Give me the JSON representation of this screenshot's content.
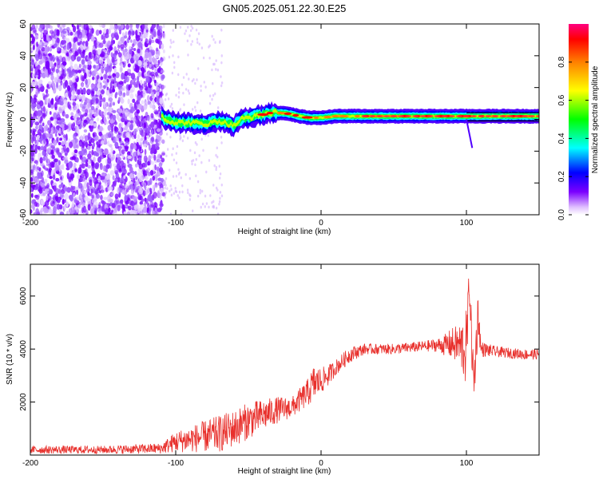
{
  "title": "GN05.2025.051.22.30.E25",
  "colorbar": {
    "label": "Normalized spectral amplitude",
    "ticks": [
      "0.0",
      "0.2",
      "0.4",
      "0.6",
      "0.8"
    ],
    "tick_values": [
      0.0,
      0.2,
      0.4,
      0.6,
      0.8
    ],
    "range": [
      0,
      1
    ],
    "colors": [
      "#ffffff",
      "#7b00ff",
      "#0000ff",
      "#00ffff",
      "#00ff00",
      "#ffff00",
      "#ff8000",
      "#ff0000",
      "#ff00aa"
    ]
  },
  "chart_data": [
    {
      "type": "heatmap",
      "title": "",
      "xlabel": "Height of straight line (km)",
      "ylabel": "Frequency (Hz)",
      "xlim": [
        -200,
        150
      ],
      "ylim": [
        -60,
        60
      ],
      "x_ticks": [
        -200,
        -100,
        0,
        100
      ],
      "y_ticks": [
        -60,
        -40,
        -20,
        0,
        20,
        40,
        60
      ],
      "x_tick_labels": [
        "-200",
        "-100",
        "0",
        "100"
      ],
      "y_tick_labels": [
        "-60",
        "-40",
        "-20",
        "0",
        "20",
        "40",
        "60"
      ],
      "description_regions": {
        "noise_scatter_x": [
          -200,
          -108
        ],
        "ridge": [
          {
            "x": -108,
            "y": 0
          },
          {
            "x": -100,
            "y": -2
          },
          {
            "x": -90,
            "y": -2
          },
          {
            "x": -80,
            "y": -3
          },
          {
            "x": -70,
            "y": -1
          },
          {
            "x": -60,
            "y": -4
          },
          {
            "x": -55,
            "y": 0
          },
          {
            "x": -45,
            "y": 2
          },
          {
            "x": -35,
            "y": 4
          },
          {
            "x": -25,
            "y": 4
          },
          {
            "x": -15,
            "y": 2
          },
          {
            "x": -8,
            "y": 1
          },
          {
            "x": 0,
            "y": 1
          },
          {
            "x": 10,
            "y": 2
          },
          {
            "x": 20,
            "y": 2
          },
          {
            "x": 40,
            "y": 2
          },
          {
            "x": 60,
            "y": 2
          },
          {
            "x": 80,
            "y": 2
          },
          {
            "x": 90,
            "y": 2
          },
          {
            "x": 100,
            "y": 2
          },
          {
            "x": 120,
            "y": 2
          },
          {
            "x": 150,
            "y": 2
          }
        ]
      }
    },
    {
      "type": "line",
      "title": "",
      "xlabel": "Height of straight line (km)",
      "ylabel": "SNR (10 * v/v)",
      "xlim": [
        -200,
        150
      ],
      "ylim": [
        0,
        7200
      ],
      "x_ticks": [
        -200,
        -100,
        0,
        100
      ],
      "y_ticks": [
        2000,
        4000,
        6000
      ],
      "x_tick_labels": [
        "-200",
        "-100",
        "0",
        "100"
      ],
      "y_tick_labels": [
        "2000",
        "4000",
        "6000"
      ],
      "series": [
        {
          "color": "#e8302c",
          "x": [
            -200,
            -150,
            -110,
            -100,
            -90,
            -80,
            -70,
            -60,
            -50,
            -40,
            -30,
            -20,
            -10,
            -5,
            0,
            5,
            10,
            20,
            30,
            40,
            50,
            60,
            70,
            80,
            85,
            90,
            95,
            100,
            102,
            105,
            108,
            110,
            120,
            130,
            140,
            150
          ],
          "y": [
            200,
            200,
            250,
            500,
            600,
            700,
            800,
            1000,
            1300,
            1500,
            1700,
            1800,
            2300,
            2700,
            2800,
            3000,
            3300,
            3800,
            4000,
            4000,
            4000,
            4050,
            4100,
            4150,
            4150,
            4200,
            4150,
            4000,
            6500,
            2500,
            5400,
            4000,
            3900,
            3850,
            3800,
            3800
          ],
          "noise_amplitude": [
            150,
            150,
            200,
            400,
            500,
            600,
            700,
            700,
            700,
            600,
            500,
            400,
            500,
            700,
            500,
            400,
            300,
            300,
            200,
            200,
            200,
            200,
            200,
            250,
            400,
            600,
            800,
            1500,
            600,
            1200,
            800,
            300,
            200,
            200,
            200,
            200
          ]
        }
      ]
    }
  ]
}
